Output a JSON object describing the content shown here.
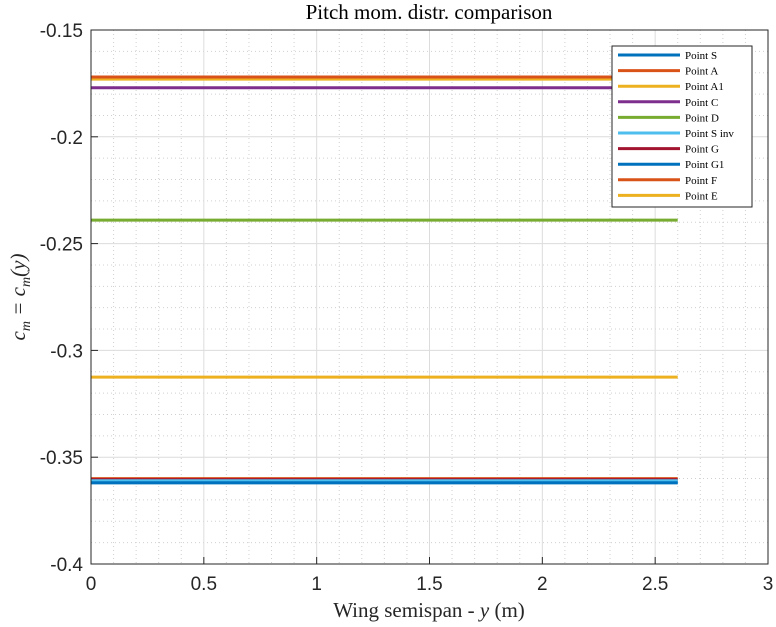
{
  "chart_data": {
    "type": "line",
    "title": "Pitch mom. distr. comparison",
    "xlabel_text": "Wing semispan - ",
    "xlabel_var": "y",
    "xlabel_unit": "(m)",
    "ylabel_main": "c",
    "ylabel_sub": "m",
    "ylabel_eq": " = c",
    "ylabel_sub2": "m",
    "ylabel_arg": "(y)",
    "xlim": [
      0,
      3
    ],
    "ylim": [
      -0.4,
      -0.15
    ],
    "xticks": [
      0,
      0.5,
      1,
      1.5,
      2,
      2.5,
      3
    ],
    "xtick_labels": [
      "0",
      "0.5",
      "1",
      "1.5",
      "2",
      "2.5",
      "3"
    ],
    "yticks": [
      -0.4,
      -0.35,
      -0.3,
      -0.25,
      -0.2,
      -0.15
    ],
    "ytick_labels": [
      "-0.4",
      "-0.35",
      "-0.3",
      "-0.25",
      "-0.2",
      "-0.15"
    ],
    "grid": true,
    "minor_grid": true,
    "legend_position": "top-right",
    "series": [
      {
        "name": "Point S",
        "color": "#0072BD",
        "x": [
          0,
          2.6
        ],
        "y": [
          -0.362,
          -0.362
        ]
      },
      {
        "name": "Point A",
        "color": "#D95319",
        "x": [
          0,
          2.6
        ],
        "y": [
          -0.172,
          -0.172
        ]
      },
      {
        "name": "Point A1",
        "color": "#EDB120",
        "x": [
          0,
          2.6
        ],
        "y": [
          -0.173,
          -0.173
        ]
      },
      {
        "name": "Point C",
        "color": "#7E2F8E",
        "x": [
          0,
          2.6
        ],
        "y": [
          -0.177,
          -0.177
        ]
      },
      {
        "name": "Point D",
        "color": "#77AC30",
        "x": [
          0,
          2.6
        ],
        "y": [
          -0.239,
          -0.239
        ]
      },
      {
        "name": "Point S inv",
        "color": "#4DBEEE",
        "x": [
          0,
          2.6
        ],
        "y": [
          -0.361,
          -0.361
        ]
      },
      {
        "name": "Point G",
        "color": "#A2142F",
        "x": [
          0,
          2.6
        ],
        "y": [
          -0.3605,
          -0.3605
        ]
      },
      {
        "name": "Point G1",
        "color": "#0072BD",
        "x": [
          0,
          2.6
        ],
        "y": [
          -0.362,
          -0.362
        ]
      },
      {
        "name": "Point F",
        "color": "#D95319",
        "x": [
          0,
          2.6
        ],
        "y": [
          -0.36,
          -0.36
        ]
      },
      {
        "name": "Point E",
        "color": "#EDB120",
        "x": [
          0,
          2.6
        ],
        "y": [
          -0.3125,
          -0.3125
        ]
      }
    ]
  }
}
